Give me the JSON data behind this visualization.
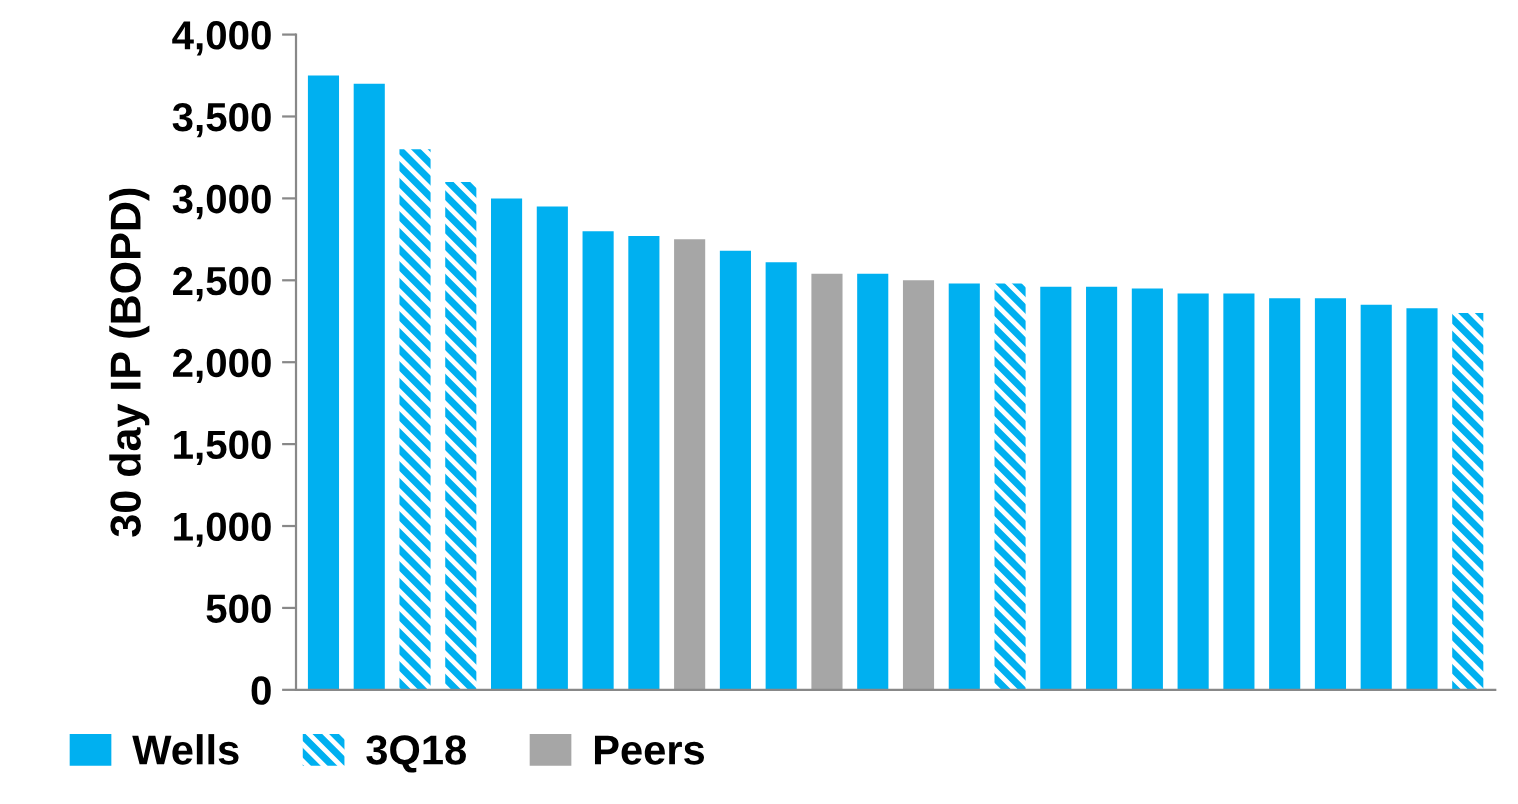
{
  "chart_data": {
    "type": "bar",
    "ylabel": "30 day IP (BOPD)",
    "categories": [
      null,
      null,
      null,
      null,
      null,
      null,
      null,
      null,
      null,
      null,
      null,
      null,
      null,
      null,
      null,
      null,
      null,
      null,
      null,
      null,
      null,
      null,
      null,
      null,
      null,
      null
    ],
    "series": [
      {
        "name": "Wells",
        "color": "#00b0f0",
        "values": [
          3750,
          3700,
          null,
          null,
          3000,
          2950,
          2800,
          2770,
          null,
          2680,
          2610,
          null,
          2540,
          null,
          2480,
          null,
          2460,
          2460,
          2450,
          2420,
          2420,
          2390,
          2390,
          2350,
          2330,
          null
        ]
      },
      {
        "name": "3Q18",
        "color": "#00b0f0",
        "values": [
          null,
          null,
          3300,
          3100,
          null,
          null,
          null,
          null,
          null,
          null,
          null,
          null,
          null,
          null,
          null,
          2480,
          null,
          null,
          null,
          null,
          null,
          null,
          null,
          null,
          null,
          2300
        ]
      },
      {
        "name": "Peers",
        "color": "#a6a6a6",
        "values": [
          null,
          null,
          null,
          null,
          null,
          null,
          null,
          null,
          2750,
          null,
          null,
          2540,
          null,
          2500,
          null,
          null,
          null,
          null,
          null,
          null,
          null,
          null,
          null,
          null,
          null,
          null
        ]
      }
    ],
    "ylim": [
      0,
      4000
    ],
    "yticks": [
      {
        "value": 0,
        "label": "0"
      },
      {
        "value": 500,
        "label": "500"
      },
      {
        "value": 1000,
        "label": "1,000"
      },
      {
        "value": 1500,
        "label": "1,500"
      },
      {
        "value": 2000,
        "label": "2,000"
      },
      {
        "value": 2500,
        "label": "2,500"
      },
      {
        "value": 3000,
        "label": "3,000"
      },
      {
        "value": 3500,
        "label": "3,500"
      },
      {
        "value": 4000,
        "label": "4,000"
      }
    ],
    "grid": false,
    "legend": "bottom left"
  }
}
